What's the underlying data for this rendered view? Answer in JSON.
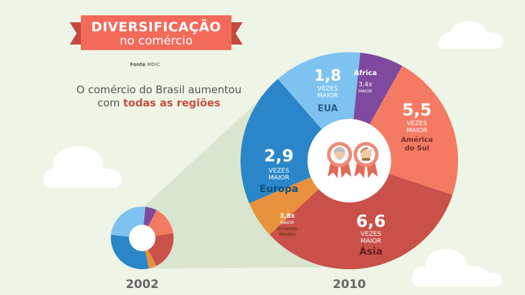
{
  "header": {
    "title": "DIVERSIFICAÇÃO",
    "subtitle": "no comércio",
    "source_label": "Fonte",
    "source_value": "MDIC"
  },
  "intro": {
    "line1": "O comércio do Brasil aumentou",
    "line2_prefix": "com",
    "line2_bold": "todas as regiões"
  },
  "colors": {
    "background": "#eef4e6",
    "ribbon": "#f26a5a",
    "ribbon_dark": "#c24a3e",
    "accent_text": "#c94f3f",
    "africa": "#7f4a9e",
    "america_do_sul": "#f47a63",
    "asia": "#c9514a",
    "oriente_medio": "#e8913c",
    "europa": "#2a86c8",
    "eua": "#7ec3f0"
  },
  "chart_data": [
    {
      "type": "pie",
      "year_label": "2002",
      "regions": [
        "África",
        "América do Sul",
        "Ásia",
        "Oriente Médio",
        "Europa",
        "EUA"
      ],
      "shares": [
        0.06,
        0.15,
        0.2,
        0.04,
        0.3,
        0.25
      ]
    },
    {
      "type": "pie",
      "year_label": "2010",
      "regions": [
        "África",
        "América do Sul",
        "Ásia",
        "Oriente Médio",
        "Europa",
        "EUA"
      ],
      "shares": [
        0.065,
        0.22,
        0.33,
        0.055,
        0.2,
        0.13
      ],
      "growth_labels": [
        {
          "value": "3,4x",
          "times": "MAIOR",
          "name": "África"
        },
        {
          "value": "5,5",
          "times": "VEZES\nMAIOR",
          "name": "América\ndo Sul"
        },
        {
          "value": "6,6",
          "times": "VEZES\nMAIOR",
          "name": "Ásia"
        },
        {
          "value": "3,8x",
          "times": "MAIOR",
          "name": "Oriente\nMédio"
        },
        {
          "value": "2,9",
          "times": "VEZES\nMAIOR",
          "name": "Europa"
        },
        {
          "value": "1,8",
          "times": "VEZES\nMAIOR",
          "name": "EUA"
        }
      ]
    }
  ]
}
